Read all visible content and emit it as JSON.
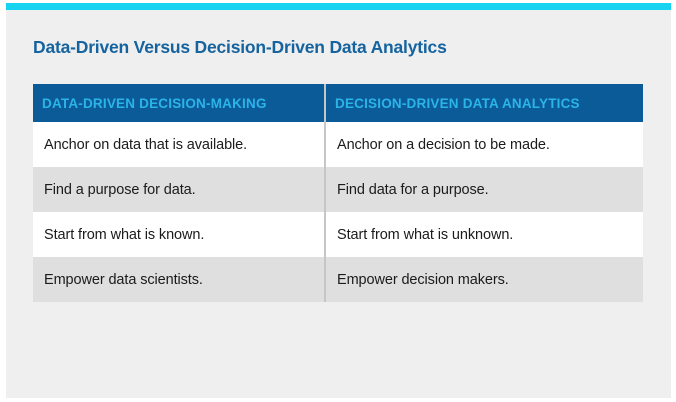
{
  "page": {
    "background_color": "#efefef",
    "accent_bar_color": "#17d3f2",
    "title_color": "#15639f",
    "header_bg_color": "#0b5b99",
    "header_text_color": "#2bb4e8",
    "alt_row_color": "#dfdfdf"
  },
  "title": "Data-Driven Versus Decision-Driven Data Analytics",
  "table": {
    "headers": [
      "DATA-DRIVEN DECISION-MAKING",
      "DECISION-DRIVEN DATA ANALYTICS"
    ],
    "rows": [
      {
        "left": "Anchor on data that is available.",
        "right": "Anchor on a decision to be made."
      },
      {
        "left": "Find a purpose for data.",
        "right": "Find data for a purpose."
      },
      {
        "left": "Start from what is known.",
        "right": "Start from what is unknown."
      },
      {
        "left": "Empower data scientists.",
        "right": "Empower decision makers."
      }
    ]
  }
}
